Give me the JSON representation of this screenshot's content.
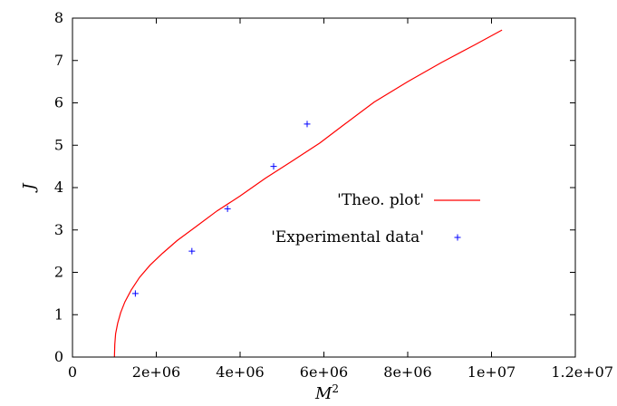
{
  "chart_data": {
    "type": "line",
    "title": "",
    "xlabel": "M²",
    "ylabel": "J",
    "xlim": [
      0,
      12000000
    ],
    "ylim": [
      0,
      8
    ],
    "x_ticks": [
      0,
      2000000,
      4000000,
      6000000,
      8000000,
      10000000,
      12000000
    ],
    "x_tick_labels": [
      "0",
      "2e+06",
      "4e+06",
      "6e+06",
      "8e+06",
      "1e+07",
      "1.2e+07"
    ],
    "y_ticks": [
      0,
      1,
      2,
      3,
      4,
      5,
      6,
      7,
      8
    ],
    "y_tick_labels": [
      "0",
      "1",
      "2",
      "3",
      "4",
      "5",
      "6",
      "7",
      "8"
    ],
    "grid": false,
    "legend_position": "center-right",
    "series": [
      {
        "name": "'Theo. plot'",
        "kind": "line",
        "color": "#ff0000",
        "x": [
          1000000,
          1010000,
          1030000,
          1080000,
          1150000,
          1250000,
          1400000,
          1600000,
          1850000,
          2150000,
          2500000,
          2950000,
          3450000,
          4000000,
          4600000,
          5200000,
          5900000,
          6500000,
          7200000,
          8000000,
          8800000,
          9600000,
          10250000
        ],
        "y": [
          0.0,
          0.3,
          0.55,
          0.8,
          1.05,
          1.3,
          1.58,
          1.88,
          2.17,
          2.45,
          2.75,
          3.08,
          3.45,
          3.8,
          4.22,
          4.6,
          5.05,
          5.5,
          6.02,
          6.5,
          6.95,
          7.37,
          7.72
        ]
      },
      {
        "name": "'Experimental data'",
        "kind": "scatter",
        "marker": "+",
        "color": "#0000ff",
        "x": [
          1500000,
          2850000,
          3700000,
          4800000,
          5600000
        ],
        "y": [
          1.5,
          2.5,
          3.5,
          4.5,
          5.5
        ]
      }
    ]
  }
}
